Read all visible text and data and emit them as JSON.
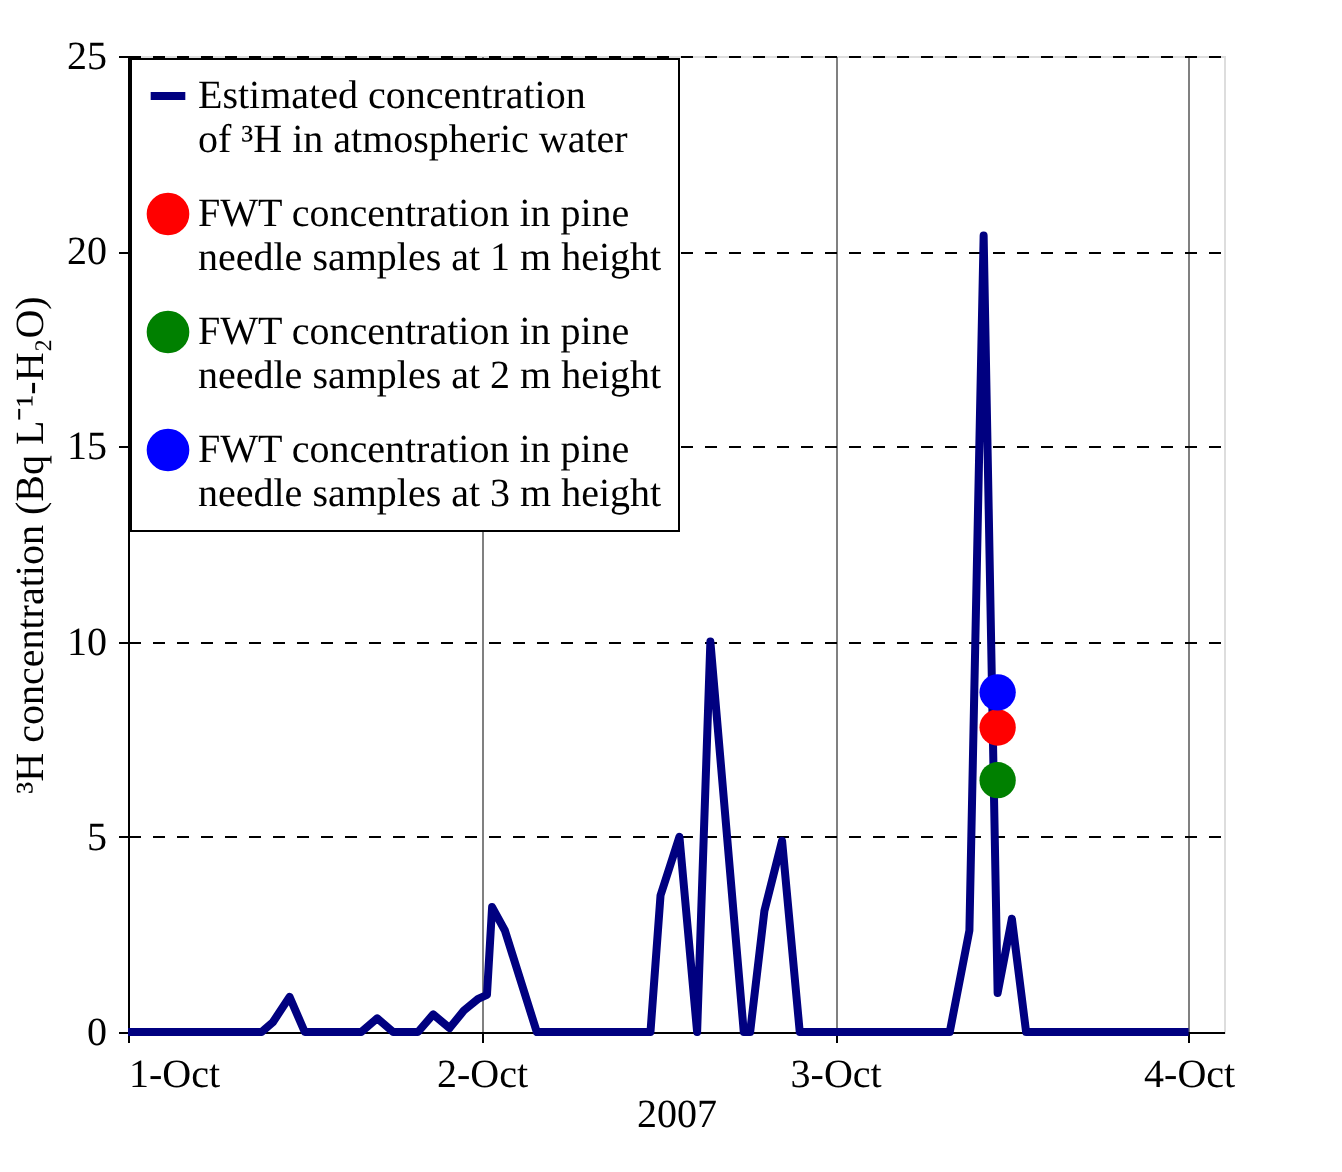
{
  "chart_data": {
    "type": "line",
    "xlabel": "2007",
    "ylabel": "³H concentration (Bq L⁻¹-H₂O)",
    "xlim": [
      "2007-10-01",
      "2007-10-04T02:24"
    ],
    "xticks": [
      {
        "value": "2007-10-01",
        "label": "1-Oct"
      },
      {
        "value": "2007-10-02",
        "label": "2-Oct"
      },
      {
        "value": "2007-10-03",
        "label": "3-Oct"
      },
      {
        "value": "2007-10-04",
        "label": "4-Oct"
      }
    ],
    "ylim": [
      0,
      25
    ],
    "yticks": [
      0,
      5,
      10,
      15,
      20,
      25
    ],
    "grid": true,
    "legend": "top left",
    "series": [
      {
        "name": "Estimated concentration of ³H in atmospheric water",
        "color": "#000080",
        "marker": "none",
        "line_style": "solid",
        "x": [
          "2007-10-01T00:00",
          "2007-10-01T09:04",
          "2007-10-01T09:50",
          "2007-10-01T10:58",
          "2007-10-01T12:00",
          "2007-10-01T15:50",
          "2007-10-01T16:55",
          "2007-10-01T18:00",
          "2007-10-01T19:41",
          "2007-10-01T20:43",
          "2007-10-01T21:50",
          "2007-10-01T22:48",
          "2007-10-01T23:46",
          "2007-10-02T00:22",
          "2007-10-02T00:43",
          "2007-10-02T01:35",
          "2007-10-02T03:45",
          "2007-10-02T11:28",
          "2007-10-02T12:09",
          "2007-10-02T13:26",
          "2007-10-02T14:38",
          "2007-10-02T15:32",
          "2007-10-02T17:48",
          "2007-10-02T18:14",
          "2007-10-02T19:12",
          "2007-10-02T20:24",
          "2007-10-02T21:36",
          "2007-10-03T07:47",
          "2007-10-03T09:07",
          "2007-10-03T10:05",
          "2007-10-03T11:02",
          "2007-10-03T12:00",
          "2007-10-03T12:58",
          "2007-10-04T00:00"
        ],
        "values": [
          0,
          0,
          0.25,
          0.9,
          0,
          0,
          0.35,
          0,
          0,
          0.45,
          0.1,
          0.55,
          0.85,
          0.95,
          3.2,
          2.6,
          0,
          0,
          3.5,
          5.0,
          0,
          10.0,
          0,
          0,
          3.1,
          4.9,
          0,
          0,
          2.6,
          20.4,
          1.0,
          2.9,
          0,
          0
        ]
      },
      {
        "name": "FWT concentration in pine needle samples at 1 m height",
        "type": "scatter",
        "color": "#ff0000",
        "marker": "circle",
        "x": [
          "2007-10-03T11:02"
        ],
        "values": [
          7.8
        ]
      },
      {
        "name": "FWT concentration in pine needle samples at 2 m height",
        "type": "scatter",
        "color": "#008000",
        "marker": "circle",
        "x": [
          "2007-10-03T11:02"
        ],
        "values": [
          6.45
        ]
      },
      {
        "name": "FWT concentration in pine needle samples at 3 m height",
        "type": "scatter",
        "color": "#0000ff",
        "marker": "circle",
        "x": [
          "2007-10-03T11:02"
        ],
        "values": [
          8.7
        ]
      }
    ]
  }
}
